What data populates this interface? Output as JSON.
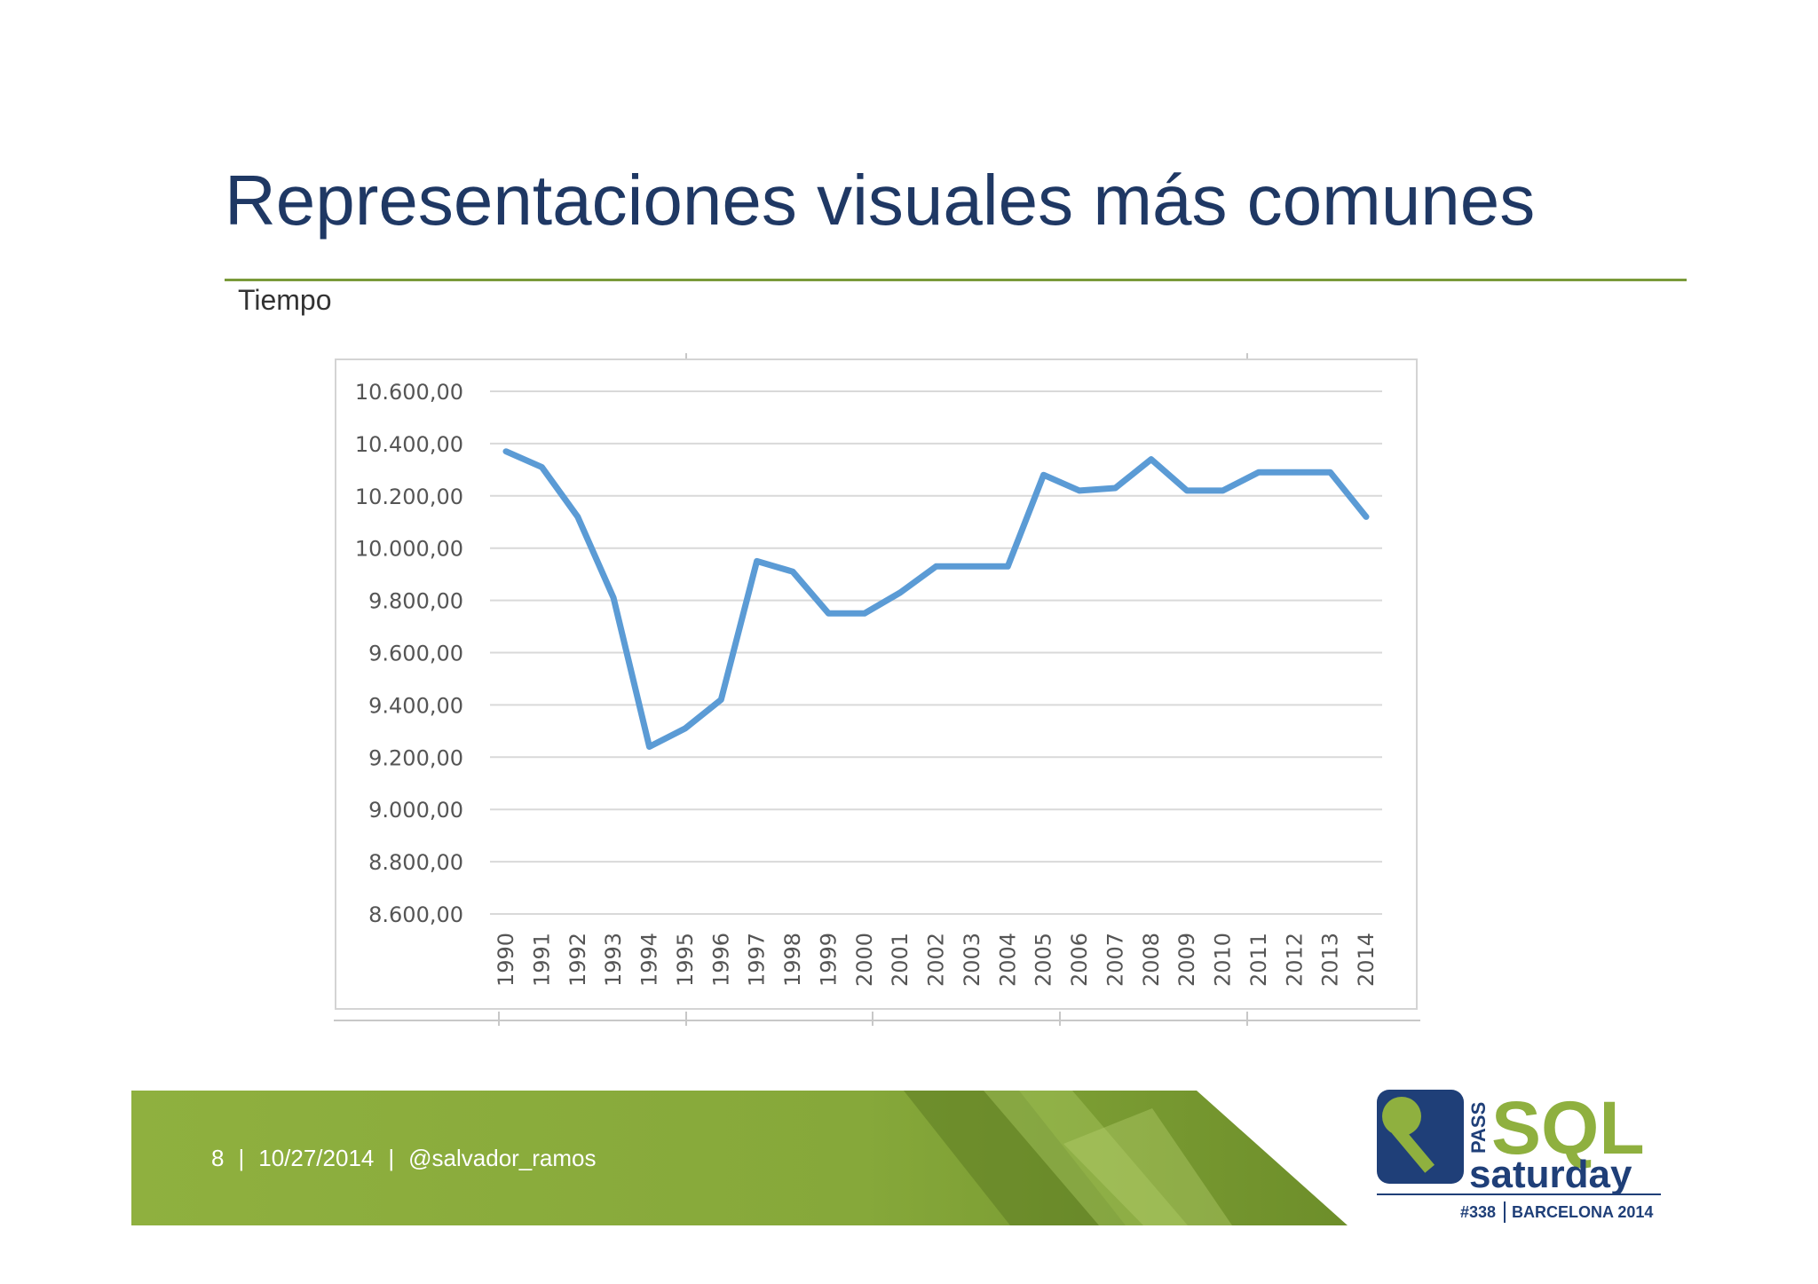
{
  "slide": {
    "title": "Representaciones visuales más comunes",
    "subtitle": "Tiempo",
    "accent_color": "#7a9a3a",
    "title_color": "#1f3864"
  },
  "footer": {
    "page": "8",
    "sep1": "|",
    "date": "10/27/2014",
    "sep2": "|",
    "handle": "@salvador_ramos"
  },
  "logo": {
    "brand_small": "PASS",
    "brand_big": "SQL",
    "brand_word": "saturday",
    "event_number": "#338",
    "event_city": "BARCELONA 2014",
    "icon": "key-icon"
  },
  "chart_data": {
    "type": "line",
    "title": "",
    "xlabel": "",
    "ylabel": "",
    "categories": [
      "1990",
      "1991",
      "1992",
      "1993",
      "1994",
      "1995",
      "1996",
      "1997",
      "1998",
      "1999",
      "2000",
      "2001",
      "2002",
      "2003",
      "2004",
      "2005",
      "2006",
      "2007",
      "2008",
      "2009",
      "2010",
      "2011",
      "2012",
      "2013",
      "2014"
    ],
    "values": [
      10370,
      10310,
      10120,
      9810,
      9240,
      9310,
      9420,
      9950,
      9910,
      9750,
      9750,
      9830,
      9930,
      9930,
      9930,
      10280,
      10220,
      10230,
      10340,
      10220,
      10220,
      10290,
      10290,
      10290,
      10120
    ],
    "ylim": [
      8600,
      10600
    ],
    "yticks": [
      "8.600,00",
      "8.800,00",
      "9.000,00",
      "9.200,00",
      "9.400,00",
      "9.600,00",
      "9.800,00",
      "10.000,00",
      "10.200,00",
      "10.400,00",
      "10.600,00"
    ],
    "grid": true,
    "legend": "none",
    "line_color": "#5b9bd5"
  }
}
